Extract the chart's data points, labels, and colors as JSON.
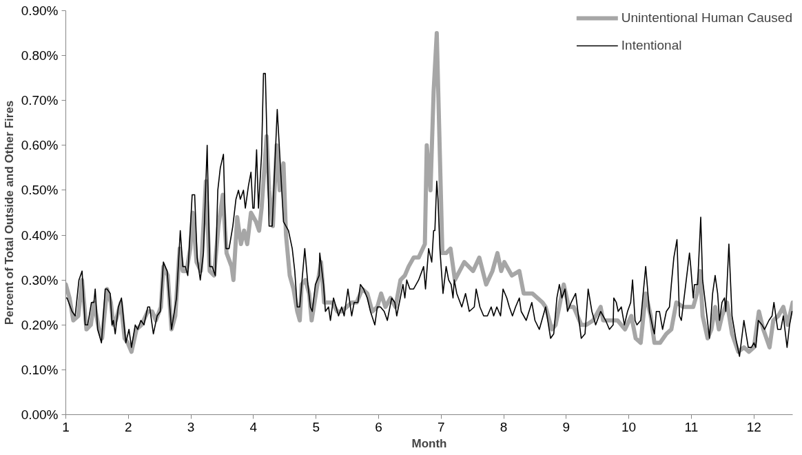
{
  "chart_data": {
    "type": "line",
    "xlabel": "Month",
    "ylabel": "Percent of Total Outside and Other Fires",
    "xlim": [
      1,
      12.62
    ],
    "xticks": [
      1,
      2,
      3,
      4,
      5,
      6,
      7,
      8,
      9,
      10,
      11,
      12
    ],
    "ylim": [
      0,
      0.9
    ],
    "yticks": [
      {
        "value": 0,
        "label": "0.00%"
      },
      {
        "value": 0.1,
        "label": "0.10%"
      },
      {
        "value": 0.2,
        "label": "0.20%"
      },
      {
        "value": 0.3,
        "label": "0.30%"
      },
      {
        "value": 0.4,
        "label": "0.40%"
      },
      {
        "value": 0.5,
        "label": "0.50%"
      },
      {
        "value": 0.6,
        "label": "0.60%"
      },
      {
        "value": 0.7,
        "label": "0.70%"
      },
      {
        "value": 0.8,
        "label": "0.80%"
      },
      {
        "value": 0.9,
        "label": "0.90%"
      }
    ],
    "grid": false,
    "legend": "top right",
    "marker": "none",
    "line_style": "solid",
    "series": [
      {
        "name": "Unintentional Human Caused",
        "color": "#a6a6a6",
        "x": [
          1.0,
          1.06,
          1.12,
          1.2,
          1.26,
          1.33,
          1.4,
          1.45,
          1.53,
          1.58,
          1.66,
          1.72,
          1.76,
          1.8,
          1.88,
          1.94,
          1.99,
          2.05,
          2.13,
          2.21,
          2.31,
          2.38,
          2.44,
          2.52,
          2.56,
          2.63,
          2.69,
          2.75,
          2.82,
          2.87,
          2.93,
          2.99,
          3.03,
          3.09,
          3.16,
          3.24,
          3.3,
          3.37,
          3.44,
          3.51,
          3.57,
          3.65,
          3.68,
          3.74,
          3.8,
          3.85,
          3.9,
          3.96,
          4.04,
          4.09,
          4.13,
          4.21,
          4.25,
          4.31,
          4.37,
          4.42,
          4.48,
          4.52,
          4.58,
          4.64,
          4.7,
          4.74,
          4.77,
          4.83,
          4.89,
          4.93,
          5.01,
          5.08,
          5.13,
          5.2,
          5.26,
          5.34,
          5.41,
          5.49,
          5.57,
          5.65,
          5.74,
          5.82,
          5.9,
          5.98,
          6.04,
          6.11,
          6.19,
          6.27,
          6.35,
          6.42,
          6.48,
          6.56,
          6.64,
          6.74,
          6.77,
          6.83,
          6.88,
          6.93,
          7.02,
          7.08,
          7.15,
          7.22,
          7.37,
          7.51,
          7.61,
          7.72,
          7.82,
          7.9,
          7.96,
          8.01,
          8.13,
          8.25,
          8.32,
          8.46,
          8.62,
          8.67,
          8.77,
          8.83,
          8.96,
          9.04,
          9.12,
          9.24,
          9.32,
          9.43,
          9.55,
          9.59,
          9.71,
          9.82,
          9.94,
          10.04,
          10.11,
          10.19,
          10.27,
          10.35,
          10.41,
          10.5,
          10.6,
          10.68,
          10.76,
          10.87,
          10.97,
          11.03,
          11.09,
          11.14,
          11.18,
          11.26,
          11.32,
          11.38,
          11.44,
          11.49,
          11.57,
          11.65,
          11.75,
          11.84,
          11.92,
          12.0,
          12.08,
          12.15,
          12.25,
          12.31,
          12.39,
          12.47,
          12.54,
          12.62
        ],
        "values": [
          0.29,
          0.26,
          0.21,
          0.22,
          0.3,
          0.19,
          0.2,
          0.25,
          0.19,
          0.17,
          0.28,
          0.25,
          0.2,
          0.21,
          0.25,
          0.17,
          0.16,
          0.14,
          0.19,
          0.2,
          0.23,
          0.23,
          0.21,
          0.24,
          0.33,
          0.31,
          0.19,
          0.22,
          0.37,
          0.32,
          0.32,
          0.37,
          0.45,
          0.34,
          0.32,
          0.52,
          0.32,
          0.31,
          0.42,
          0.49,
          0.36,
          0.33,
          0.3,
          0.44,
          0.38,
          0.41,
          0.38,
          0.45,
          0.43,
          0.41,
          0.46,
          0.62,
          0.5,
          0.42,
          0.6,
          0.5,
          0.56,
          0.4,
          0.31,
          0.28,
          0.23,
          0.21,
          0.29,
          0.3,
          0.27,
          0.21,
          0.28,
          0.34,
          0.25,
          0.25,
          0.25,
          0.23,
          0.23,
          0.24,
          0.25,
          0.25,
          0.28,
          0.27,
          0.23,
          0.24,
          0.27,
          0.24,
          0.26,
          0.24,
          0.3,
          0.31,
          0.33,
          0.35,
          0.35,
          0.38,
          0.6,
          0.5,
          0.72,
          0.85,
          0.36,
          0.36,
          0.37,
          0.3,
          0.34,
          0.32,
          0.35,
          0.29,
          0.32,
          0.36,
          0.32,
          0.34,
          0.31,
          0.32,
          0.27,
          0.27,
          0.25,
          0.24,
          0.19,
          0.2,
          0.29,
          0.24,
          0.24,
          0.2,
          0.2,
          0.21,
          0.24,
          0.21,
          0.21,
          0.21,
          0.19,
          0.22,
          0.17,
          0.16,
          0.27,
          0.22,
          0.16,
          0.16,
          0.18,
          0.19,
          0.25,
          0.24,
          0.24,
          0.24,
          0.27,
          0.32,
          0.22,
          0.17,
          0.19,
          0.24,
          0.19,
          0.22,
          0.25,
          0.18,
          0.14,
          0.15,
          0.14,
          0.15,
          0.23,
          0.19,
          0.15,
          0.21,
          0.22,
          0.24,
          0.2,
          0.25
        ]
      },
      {
        "name": "Intentional",
        "color": "#000000",
        "x": [
          1.0,
          1.02,
          1.1,
          1.15,
          1.21,
          1.26,
          1.31,
          1.35,
          1.41,
          1.45,
          1.47,
          1.51,
          1.57,
          1.63,
          1.66,
          1.71,
          1.74,
          1.76,
          1.79,
          1.84,
          1.89,
          1.96,
          2.01,
          2.05,
          2.11,
          2.15,
          2.2,
          2.25,
          2.31,
          2.34,
          2.4,
          2.46,
          2.51,
          2.56,
          2.62,
          2.69,
          2.77,
          2.83,
          2.87,
          2.91,
          2.95,
          3.02,
          3.06,
          3.1,
          3.15,
          3.2,
          3.26,
          3.3,
          3.34,
          3.39,
          3.43,
          3.47,
          3.52,
          3.56,
          3.61,
          3.67,
          3.72,
          3.76,
          3.79,
          3.84,
          3.87,
          3.92,
          3.96,
          3.99,
          4.01,
          4.05,
          4.08,
          4.13,
          4.16,
          4.19,
          4.25,
          4.3,
          4.38,
          4.48,
          4.56,
          4.62,
          4.66,
          4.7,
          4.74,
          4.82,
          4.87,
          4.91,
          4.94,
          4.99,
          5.05,
          5.06,
          5.12,
          5.15,
          5.2,
          5.23,
          5.28,
          5.36,
          5.41,
          5.45,
          5.51,
          5.57,
          5.61,
          5.67,
          5.71,
          5.76,
          5.82,
          5.87,
          5.94,
          5.98,
          6.03,
          6.09,
          6.14,
          6.21,
          6.26,
          6.29,
          6.39,
          6.42,
          6.45,
          6.5,
          6.56,
          6.64,
          6.72,
          6.75,
          6.8,
          6.85,
          6.88,
          6.9,
          6.93,
          6.95,
          6.98,
          7.03,
          7.08,
          7.12,
          7.16,
          7.19,
          7.21,
          7.25,
          7.33,
          7.39,
          7.45,
          7.53,
          7.56,
          7.62,
          7.68,
          7.74,
          7.8,
          7.84,
          7.89,
          7.95,
          7.99,
          8.05,
          8.09,
          8.14,
          8.19,
          8.25,
          8.28,
          8.36,
          8.45,
          8.5,
          8.57,
          8.67,
          8.75,
          8.8,
          8.85,
          8.89,
          8.93,
          8.98,
          9.02,
          9.08,
          9.15,
          9.24,
          9.3,
          9.35,
          9.41,
          9.47,
          9.55,
          9.63,
          9.69,
          9.75,
          9.76,
          9.8,
          9.83,
          9.88,
          9.93,
          9.98,
          10.03,
          10.06,
          10.1,
          10.13,
          10.19,
          10.27,
          10.33,
          10.39,
          10.41,
          10.44,
          10.49,
          10.54,
          10.6,
          10.65,
          10.68,
          10.72,
          10.77,
          10.81,
          10.84,
          10.91,
          10.97,
          10.99,
          11.03,
          11.05,
          11.1,
          11.15,
          11.18,
          11.24,
          11.29,
          11.34,
          11.38,
          11.42,
          11.45,
          11.49,
          11.53,
          11.55,
          11.6,
          11.65,
          11.71,
          11.77,
          11.84,
          11.91,
          11.96,
          12.0,
          12.03,
          12.07,
          12.13,
          12.17,
          12.24,
          12.29,
          12.32,
          12.38,
          12.43,
          12.47,
          12.53,
          12.57,
          12.61
        ],
        "values": [
          0.26,
          0.26,
          0.23,
          0.22,
          0.3,
          0.32,
          0.2,
          0.2,
          0.25,
          0.25,
          0.28,
          0.19,
          0.16,
          0.28,
          0.28,
          0.27,
          0.2,
          0.21,
          0.18,
          0.24,
          0.26,
          0.16,
          0.19,
          0.15,
          0.2,
          0.19,
          0.21,
          0.2,
          0.24,
          0.24,
          0.18,
          0.22,
          0.23,
          0.34,
          0.32,
          0.19,
          0.26,
          0.41,
          0.33,
          0.33,
          0.31,
          0.49,
          0.49,
          0.35,
          0.3,
          0.36,
          0.6,
          0.33,
          0.33,
          0.31,
          0.5,
          0.55,
          0.58,
          0.37,
          0.37,
          0.42,
          0.48,
          0.5,
          0.48,
          0.5,
          0.46,
          0.51,
          0.54,
          0.46,
          0.46,
          0.59,
          0.46,
          0.58,
          0.76,
          0.76,
          0.42,
          0.42,
          0.68,
          0.43,
          0.41,
          0.37,
          0.32,
          0.24,
          0.24,
          0.37,
          0.29,
          0.24,
          0.23,
          0.29,
          0.31,
          0.36,
          0.29,
          0.23,
          0.24,
          0.21,
          0.26,
          0.22,
          0.24,
          0.22,
          0.28,
          0.22,
          0.25,
          0.25,
          0.29,
          0.28,
          0.26,
          0.23,
          0.2,
          0.24,
          0.24,
          0.23,
          0.21,
          0.26,
          0.25,
          0.22,
          0.29,
          0.26,
          0.3,
          0.28,
          0.28,
          0.3,
          0.33,
          0.28,
          0.37,
          0.34,
          0.41,
          0.41,
          0.52,
          0.48,
          0.37,
          0.27,
          0.33,
          0.3,
          0.29,
          0.26,
          0.3,
          0.27,
          0.24,
          0.27,
          0.23,
          0.24,
          0.28,
          0.24,
          0.22,
          0.22,
          0.24,
          0.22,
          0.24,
          0.22,
          0.28,
          0.26,
          0.24,
          0.22,
          0.24,
          0.26,
          0.23,
          0.21,
          0.25,
          0.21,
          0.19,
          0.24,
          0.17,
          0.18,
          0.26,
          0.29,
          0.26,
          0.28,
          0.23,
          0.25,
          0.27,
          0.17,
          0.18,
          0.28,
          0.23,
          0.2,
          0.23,
          0.21,
          0.19,
          0.2,
          0.26,
          0.25,
          0.23,
          0.24,
          0.2,
          0.23,
          0.25,
          0.3,
          0.21,
          0.2,
          0.21,
          0.33,
          0.23,
          0.19,
          0.18,
          0.23,
          0.23,
          0.19,
          0.23,
          0.24,
          0.29,
          0.35,
          0.39,
          0.22,
          0.21,
          0.29,
          0.36,
          0.33,
          0.26,
          0.29,
          0.29,
          0.44,
          0.3,
          0.23,
          0.17,
          0.27,
          0.31,
          0.27,
          0.21,
          0.25,
          0.26,
          0.23,
          0.38,
          0.22,
          0.17,
          0.13,
          0.21,
          0.15,
          0.15,
          0.16,
          0.15,
          0.21,
          0.2,
          0.19,
          0.21,
          0.22,
          0.25,
          0.19,
          0.19,
          0.22,
          0.15,
          0.2,
          0.23
        ]
      }
    ]
  }
}
